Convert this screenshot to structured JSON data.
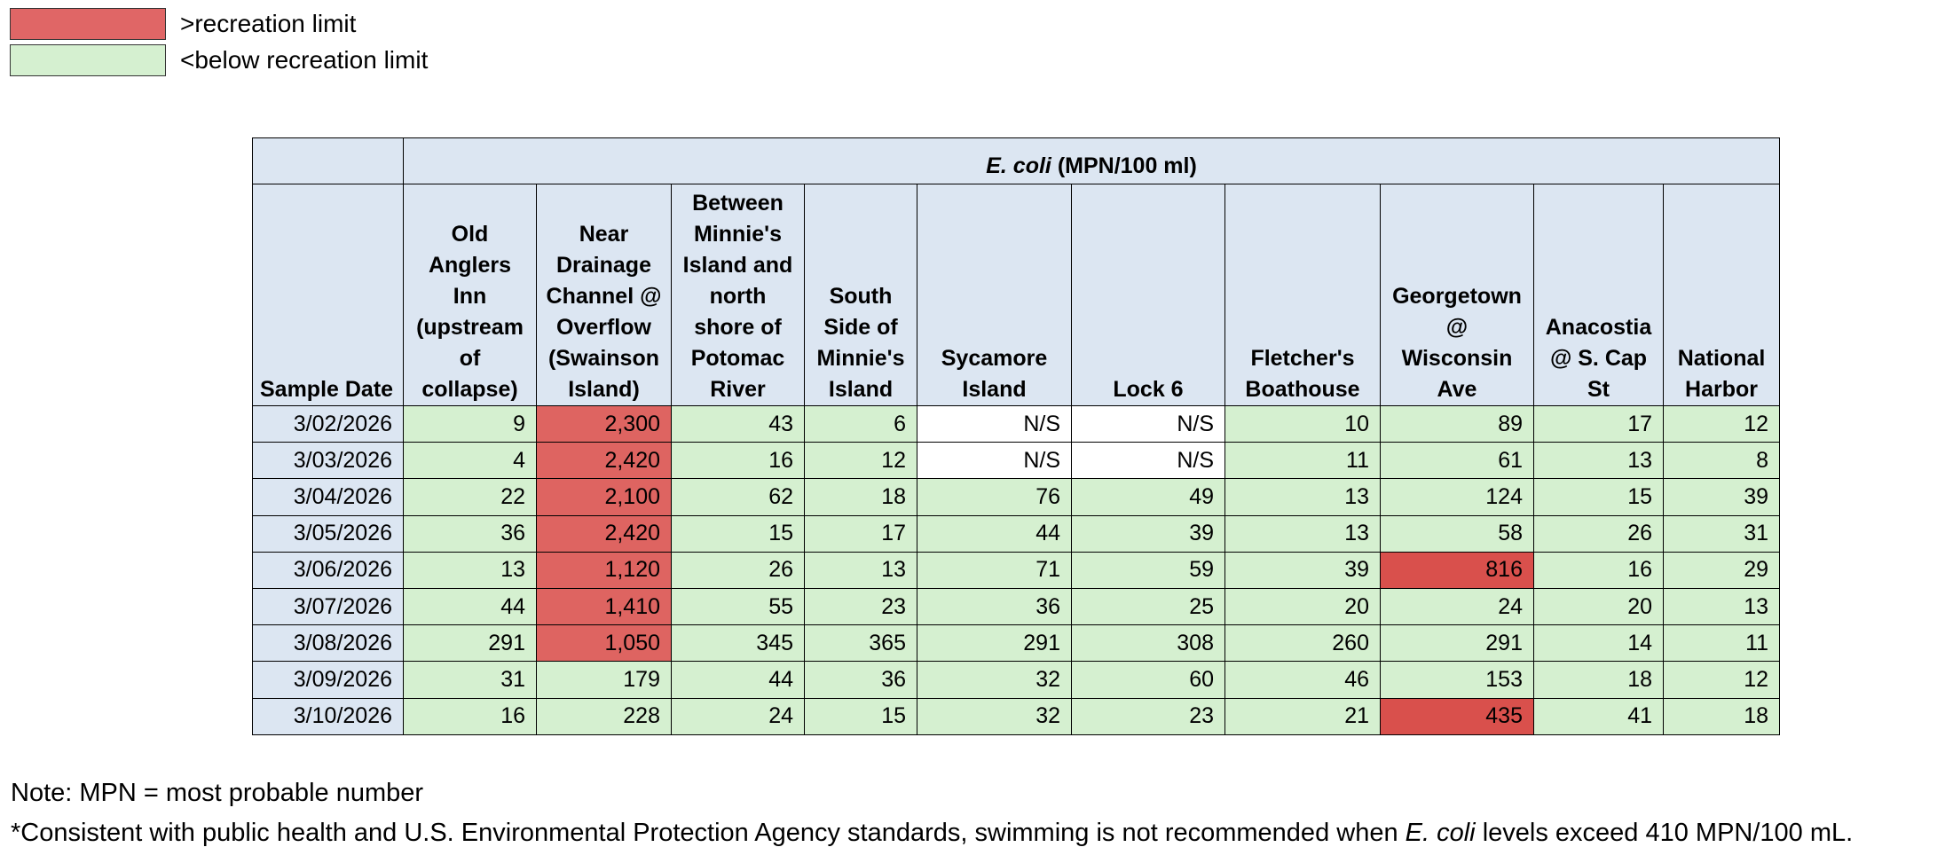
{
  "legend": [
    {
      "label": ">recreation limit",
      "color": "#e06666"
    },
    {
      "label": "<below recreation limit",
      "color": "#d5f0d0"
    }
  ],
  "table": {
    "corner_color": "#dce6f2",
    "header_color": "#dce6f2",
    "group_header": {
      "italic": "E. coli",
      "text": "(MPN/100 ml)"
    },
    "date_header": "Sample Date",
    "columns": [
      "Old Anglers Inn (upstream of collapse)",
      "Near Drainage Channel @ Overflow (Swainson Island)",
      "Between Minnie's Island and north shore of Potomac River",
      "South Side of Minnie's Island",
      "Sycamore Island",
      "Lock 6",
      "Fletcher's Boathouse",
      "Georgetown @ Wisconsin Ave",
      "Anacostia @ S. Cap St",
      "National Harbor"
    ],
    "rows": [
      {
        "date": "3/02/2026",
        "values": [
          "9",
          "2,300",
          "43",
          "6",
          "N/S",
          "N/S",
          "10",
          "89",
          "17",
          "12"
        ],
        "colors": [
          "#d5f0d0",
          "#de6461",
          "#d5f0d0",
          "#d5f0d0",
          "#ffffff",
          "#ffffff",
          "#d5f0d0",
          "#d5f0d0",
          "#d5f0d0",
          "#d5f0d0"
        ]
      },
      {
        "date": "3/03/2026",
        "values": [
          "4",
          "2,420",
          "16",
          "12",
          "N/S",
          "N/S",
          "11",
          "61",
          "13",
          "8"
        ],
        "colors": [
          "#d5f0d0",
          "#de6461",
          "#d5f0d0",
          "#d5f0d0",
          "#ffffff",
          "#ffffff",
          "#d5f0d0",
          "#d5f0d0",
          "#d5f0d0",
          "#d5f0d0"
        ]
      },
      {
        "date": "3/04/2026",
        "values": [
          "22",
          "2,100",
          "62",
          "18",
          "76",
          "49",
          "13",
          "124",
          "15",
          "39"
        ],
        "colors": [
          "#d5f0d0",
          "#de6461",
          "#d5f0d0",
          "#d5f0d0",
          "#d5f0d0",
          "#d5f0d0",
          "#d5f0d0",
          "#d5f0d0",
          "#d5f0d0",
          "#d5f0d0"
        ]
      },
      {
        "date": "3/05/2026",
        "values": [
          "36",
          "2,420",
          "15",
          "17",
          "44",
          "39",
          "13",
          "58",
          "26",
          "31"
        ],
        "colors": [
          "#d5f0d0",
          "#de6461",
          "#d5f0d0",
          "#d5f0d0",
          "#d5f0d0",
          "#d5f0d0",
          "#d5f0d0",
          "#d5f0d0",
          "#d5f0d0",
          "#d5f0d0"
        ]
      },
      {
        "date": "3/06/2026",
        "values": [
          "13",
          "1,120",
          "26",
          "13",
          "71",
          "59",
          "39",
          "816",
          "16",
          "29"
        ],
        "colors": [
          "#d5f0d0",
          "#de6461",
          "#d5f0d0",
          "#d5f0d0",
          "#d5f0d0",
          "#d5f0d0",
          "#d5f0d0",
          "#d9504c",
          "#d5f0d0",
          "#d5f0d0"
        ]
      },
      {
        "date": "3/07/2026",
        "values": [
          "44",
          "1,410",
          "55",
          "23",
          "36",
          "25",
          "20",
          "24",
          "20",
          "13"
        ],
        "colors": [
          "#d5f0d0",
          "#de6461",
          "#d5f0d0",
          "#d5f0d0",
          "#d5f0d0",
          "#d5f0d0",
          "#d5f0d0",
          "#d5f0d0",
          "#d5f0d0",
          "#d5f0d0"
        ]
      },
      {
        "date": "3/08/2026",
        "values": [
          "291",
          "1,050",
          "345",
          "365",
          "291",
          "308",
          "260",
          "291",
          "14",
          "11"
        ],
        "colors": [
          "#d5f0d0",
          "#de6461",
          "#d5f0d0",
          "#d5f0d0",
          "#d5f0d0",
          "#d5f0d0",
          "#d5f0d0",
          "#d5f0d0",
          "#d5f0d0",
          "#d5f0d0"
        ]
      },
      {
        "date": "3/09/2026",
        "values": [
          "31",
          "179",
          "44",
          "36",
          "32",
          "60",
          "46",
          "153",
          "18",
          "12"
        ],
        "colors": [
          "#d5f0d0",
          "#d5f0d0",
          "#d5f0d0",
          "#d5f0d0",
          "#d5f0d0",
          "#d5f0d0",
          "#d5f0d0",
          "#d5f0d0",
          "#d5f0d0",
          "#d5f0d0"
        ]
      },
      {
        "date": "3/10/2026",
        "values": [
          "16",
          "228",
          "24",
          "15",
          "32",
          "23",
          "21",
          "435",
          "41",
          "18"
        ],
        "colors": [
          "#d5f0d0",
          "#d5f0d0",
          "#d5f0d0",
          "#d5f0d0",
          "#d5f0d0",
          "#d5f0d0",
          "#d5f0d0",
          "#d9504c",
          "#d5f0d0",
          "#d5f0d0"
        ]
      }
    ]
  },
  "notes": {
    "first": "Note: MPN = most probable number",
    "second": {
      "before": "*Consistent with public health and U.S. Environmental Protection Agency standards, swimming is not recommended when",
      "italic": "E. coli",
      "after": "levels exceed 410 MPN/100 mL."
    }
  }
}
